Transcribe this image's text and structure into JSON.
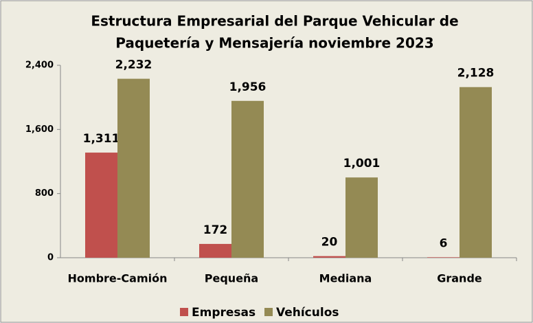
{
  "chart_data": {
    "type": "bar",
    "title": [
      "Estructura Empresarial del Parque Vehicular de",
      "Paquetería y Mensajería noviembre 2023"
    ],
    "categories": [
      "Hombre-Camión",
      "Pequeña",
      "Mediana",
      "Grande"
    ],
    "series": [
      {
        "name": "Empresas",
        "color": "#c0504d",
        "values": [
          1311,
          172,
          20,
          6
        ],
        "value_labels": [
          "1,311",
          "172",
          "20",
          "6"
        ]
      },
      {
        "name": "Vehículos",
        "color": "#948a54",
        "values": [
          2232,
          1956,
          1001,
          2128
        ],
        "value_labels": [
          "2,232",
          "1,956",
          "1,001",
          "2,128"
        ]
      }
    ],
    "ylim": [
      0,
      2400
    ],
    "yticks": [
      0,
      800,
      {
        "value": 1600,
        "label": "1,600"
      },
      {
        "value": 2400,
        "label": "2,400"
      }
    ],
    "grid": false,
    "legend": "bottom"
  }
}
